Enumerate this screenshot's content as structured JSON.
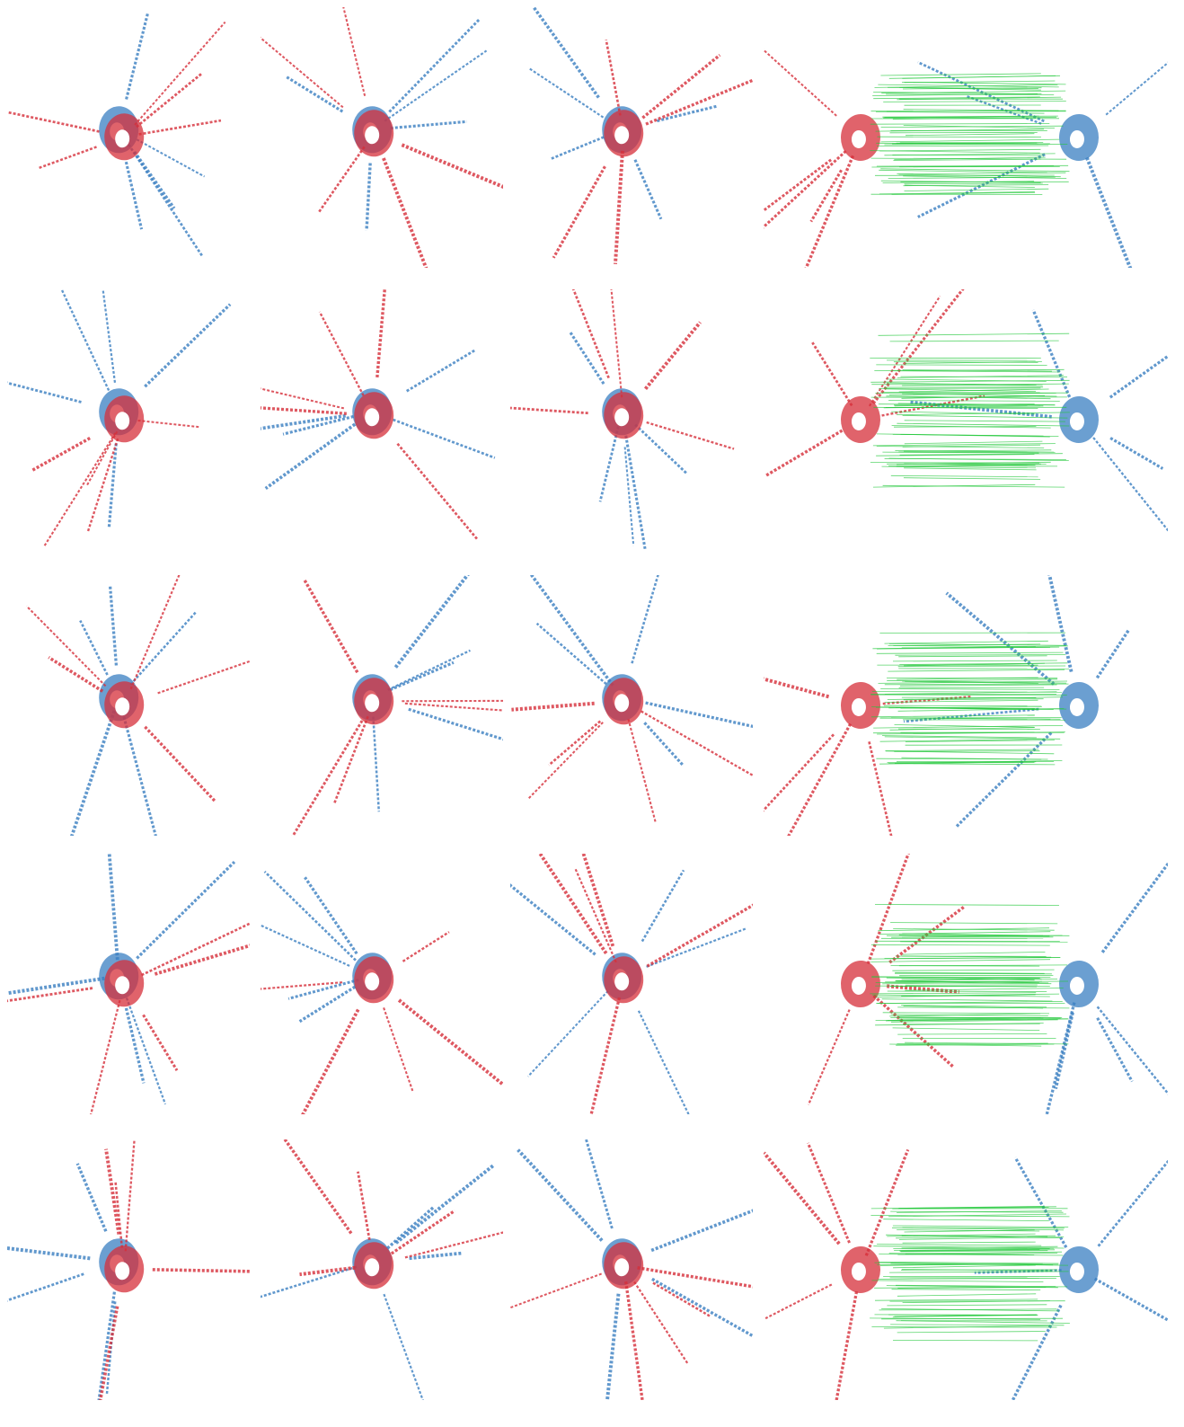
{
  "figure": {
    "rows": [
      {
        "id": "row-1",
        "panels": [
          "initial-alignment",
          "registration-result-a",
          "registration-result-b",
          "correspondences"
        ]
      },
      {
        "id": "row-2",
        "panels": [
          "initial-alignment",
          "registration-result-a",
          "registration-result-b",
          "correspondences"
        ]
      },
      {
        "id": "row-3",
        "panels": [
          "initial-alignment",
          "registration-result-a",
          "registration-result-b",
          "correspondences"
        ]
      },
      {
        "id": "row-4",
        "panels": [
          "initial-alignment",
          "registration-result-a",
          "registration-result-b",
          "correspondences"
        ]
      },
      {
        "id": "row-5",
        "panels": [
          "initial-alignment",
          "registration-result-a",
          "registration-result-b",
          "correspondences"
        ]
      }
    ],
    "colors": {
      "source_cloud": "#d62f3a",
      "target_cloud": "#3a7fc1",
      "correspondence_line": "#22c83a",
      "background": "#ffffff"
    }
  }
}
